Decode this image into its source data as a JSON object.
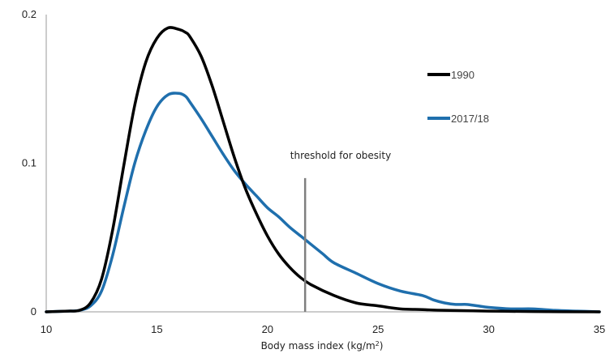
{
  "chart_data": {
    "type": "line",
    "xlabel_main": "Body mass index (kg/m",
    "xlabel_sup": "2",
    "xlabel_end": ")",
    "xlim": [
      10,
      35
    ],
    "ylim": [
      0,
      0.2
    ],
    "xticks": [
      "10",
      "15",
      "20",
      "25",
      "30",
      "35"
    ],
    "xtick_values": [
      10,
      15,
      20,
      25,
      30,
      35
    ],
    "yticks": [
      "0",
      "0.1",
      "0.2"
    ],
    "ytick_values": [
      0,
      0.1,
      0.2
    ],
    "threshold": {
      "x": 21.7,
      "y_top": 0.09,
      "label": "threshold for obesity",
      "color": "#7f7f7f"
    },
    "legend_position": "right",
    "series": [
      {
        "name": "1990",
        "color": "#000000",
        "x": [
          10,
          11,
          11.5,
          12,
          12.5,
          13,
          13.5,
          14,
          14.5,
          15,
          15.5,
          16,
          16.3,
          16.5,
          17,
          17.5,
          18,
          18.5,
          19,
          19.5,
          20,
          20.5,
          21,
          21.5,
          22,
          23,
          24,
          25,
          26,
          27,
          28,
          30,
          32,
          35
        ],
        "values": [
          0,
          0.0005,
          0.001,
          0.006,
          0.022,
          0.055,
          0.098,
          0.139,
          0.168,
          0.184,
          0.191,
          0.19,
          0.188,
          0.185,
          0.172,
          0.152,
          0.128,
          0.104,
          0.083,
          0.066,
          0.051,
          0.039,
          0.03,
          0.023,
          0.018,
          0.011,
          0.006,
          0.004,
          0.002,
          0.0015,
          0.001,
          0.0005,
          0.0002,
          0
        ]
      },
      {
        "name": "2017/18",
        "color": "#1f6fad",
        "x": [
          10,
          11,
          11.5,
          12,
          12.5,
          13,
          13.5,
          14,
          14.5,
          15,
          15.5,
          16,
          16.3,
          16.5,
          17,
          17.5,
          18,
          18.5,
          19,
          19.5,
          20,
          20.5,
          21,
          21.5,
          22,
          22.5,
          23,
          24,
          25,
          26,
          27,
          27.5,
          28,
          28.5,
          29,
          29.5,
          30,
          31,
          32,
          33,
          34,
          35
        ],
        "values": [
          0,
          0.0005,
          0.001,
          0.004,
          0.014,
          0.038,
          0.07,
          0.1,
          0.122,
          0.138,
          0.146,
          0.147,
          0.145,
          0.141,
          0.13,
          0.118,
          0.106,
          0.095,
          0.086,
          0.078,
          0.07,
          0.064,
          0.057,
          0.051,
          0.045,
          0.039,
          0.033,
          0.026,
          0.019,
          0.014,
          0.011,
          0.008,
          0.006,
          0.005,
          0.005,
          0.004,
          0.003,
          0.002,
          0.002,
          0.001,
          0.0005,
          0
        ]
      }
    ]
  }
}
